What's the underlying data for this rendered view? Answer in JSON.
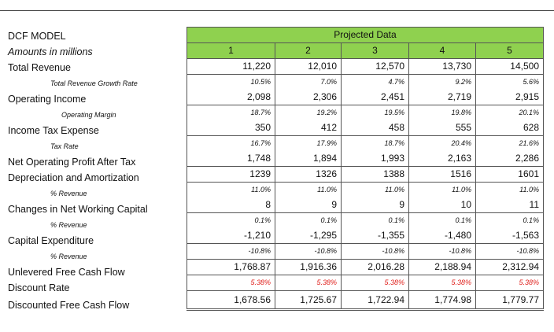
{
  "header": {
    "model_title": "DCF MODEL",
    "units": "Amounts in millions",
    "projected_label": "Projected Data",
    "years": [
      "1",
      "2",
      "3",
      "4",
      "5"
    ]
  },
  "rows": {
    "total_revenue": {
      "label": "Total Revenue",
      "values": [
        "11,220",
        "12,010",
        "12,570",
        "13,730",
        "14,500"
      ]
    },
    "revenue_growth": {
      "label": "Total Revenue Growth Rate",
      "values": [
        "10.5%",
        "7.0%",
        "4.7%",
        "9.2%",
        "5.6%"
      ]
    },
    "operating_income": {
      "label": "Operating Income",
      "values": [
        "2,098",
        "2,306",
        "2,451",
        "2,719",
        "2,915"
      ]
    },
    "operating_margin": {
      "label": "Operating Margin",
      "values": [
        "18.7%",
        "19.2%",
        "19.5%",
        "19.8%",
        "20.1%"
      ]
    },
    "income_tax": {
      "label": "Income Tax Expense",
      "values": [
        "350",
        "412",
        "458",
        "555",
        "628"
      ]
    },
    "tax_rate": {
      "label": "Tax Rate",
      "values": [
        "16.7%",
        "17.9%",
        "18.7%",
        "20.4%",
        "21.6%"
      ]
    },
    "nopat": {
      "label": "Net Operating Profit After Tax",
      "values": [
        "1,748",
        "1,894",
        "1,993",
        "2,163",
        "2,286"
      ]
    },
    "da": {
      "label": "Depreciation and Amortization",
      "values": [
        "1239",
        "1326",
        "1388",
        "1516",
        "1601"
      ]
    },
    "da_pct": {
      "label": "% Revenue",
      "values": [
        "11.0%",
        "11.0%",
        "11.0%",
        "11.0%",
        "11.0%"
      ]
    },
    "nwc": {
      "label": "Changes in Net Working Capital",
      "values": [
        "8",
        "9",
        "9",
        "10",
        "11"
      ]
    },
    "nwc_pct": {
      "label": "% Revenue",
      "values": [
        "0.1%",
        "0.1%",
        "0.1%",
        "0.1%",
        "0.1%"
      ]
    },
    "capex": {
      "label": "Capital Expenditure",
      "values": [
        "-1,210",
        "-1,295",
        "-1,355",
        "-1,480",
        "-1,563"
      ]
    },
    "capex_pct": {
      "label": "% Revenue",
      "values": [
        "-10.8%",
        "-10.8%",
        "-10.8%",
        "-10.8%",
        "-10.8%"
      ]
    },
    "ufcf": {
      "label": "Unlevered Free Cash Flow",
      "values": [
        "1,768.87",
        "1,916.36",
        "2,016.28",
        "2,188.94",
        "2,312.94"
      ]
    },
    "discount_rate": {
      "label": "Discount Rate",
      "values": [
        "5.38%",
        "5.38%",
        "5.38%",
        "5.38%",
        "5.38%"
      ]
    },
    "dfcf": {
      "label": "Discounted Free Cash Flow",
      "values": [
        "1,678.56",
        "1,725.67",
        "1,722.94",
        "1,774.98",
        "1,779.77"
      ]
    }
  },
  "colors": {
    "header_fill": "#8fd14f",
    "discount_rate_text": "#e0201c"
  }
}
